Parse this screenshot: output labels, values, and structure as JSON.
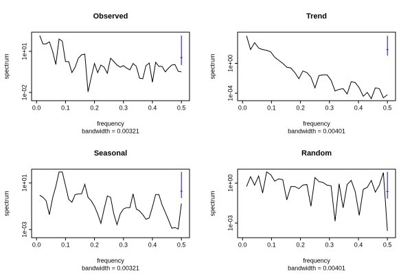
{
  "chart_data": [
    {
      "type": "line",
      "title": "Observed",
      "xlabel": "frequency",
      "subtitle": "bandwidth = 0.00321",
      "ylabel": "spectrum",
      "y_scale": "log",
      "color": "#000000",
      "x": [
        0.0111,
        0.0222,
        0.0333,
        0.0444,
        0.0556,
        0.0667,
        0.0778,
        0.0889,
        0.1,
        0.1111,
        0.1222,
        0.1333,
        0.1444,
        0.1556,
        0.1667,
        0.1778,
        0.1889,
        0.2,
        0.2111,
        0.2222,
        0.2333,
        0.2444,
        0.2556,
        0.2667,
        0.2778,
        0.2889,
        0.3,
        0.3111,
        0.3222,
        0.3333,
        0.3444,
        0.3556,
        0.3667,
        0.3778,
        0.3889,
        0.4,
        0.4111,
        0.4222,
        0.4333,
        0.4444,
        0.4556,
        0.4667,
        0.4778,
        0.4889,
        0.5
      ],
      "values": [
        141,
        35,
        35,
        50,
        10,
        1.1,
        79,
        56,
        1.8,
        1.8,
        0.28,
        0.7,
        3.2,
        5.6,
        6.3,
        0.011,
        0.13,
        1.3,
        0.28,
        1.0,
        0.7,
        0.25,
        3.2,
        1.8,
        1.0,
        0.7,
        0.9,
        0.6,
        0.45,
        1.3,
        0.8,
        0.11,
        0.1,
        0.9,
        1.4,
        0.056,
        1.6,
        0.8,
        0.8,
        0.32,
        0.6,
        1.0,
        1.1,
        0.35,
        0.32
      ],
      "ci": {
        "x": 0.5,
        "lower": 1.0,
        "center": 3.5,
        "upper": 141,
        "color": "#0000ff"
      },
      "xlim": [
        -0.017,
        0.528
      ],
      "xticks": [
        {
          "value": 0,
          "label": "0.0"
        },
        0.1,
        0.2,
        0.3,
        0.4,
        0.5
      ],
      "ylim": [
        0.0025,
        250
      ],
      "yticks": [
        {
          "value": 0.01,
          "label": "1e-02"
        },
        {
          "value": 10,
          "label": "1e+01"
        }
      ]
    },
    {
      "type": "line",
      "title": "Trend",
      "xlabel": "frequency",
      "subtitle": "bandwidth = 0.00401",
      "ylabel": "spectrum",
      "y_scale": "log",
      "color": "#000000",
      "x": [
        0.0139,
        0.0278,
        0.0417,
        0.0556,
        0.0694,
        0.0833,
        0.0972,
        0.1111,
        0.125,
        0.1389,
        0.1528,
        0.1667,
        0.1806,
        0.1944,
        0.2083,
        0.2222,
        0.2361,
        0.25,
        0.2639,
        0.2778,
        0.2917,
        0.3056,
        0.3194,
        0.3333,
        0.3472,
        0.3611,
        0.375,
        0.3889,
        0.4028,
        0.4167,
        0.4306,
        0.4444,
        0.4583,
        0.4722,
        0.4861,
        0.5
      ],
      "values": [
        4900,
        70,
        590,
        113,
        70,
        55,
        35,
        6.6,
        2.6,
        1.0,
        0.31,
        0.24,
        0.059,
        0.0089,
        0.094,
        0.059,
        0.014,
        0.00052,
        0.023,
        0.029,
        0.029,
        0.0055,
        0.0002,
        0.00033,
        0.00041,
        7.9e-05,
        0.0035,
        0.0027,
        0.00052,
        3.9e-05,
        0.00013,
        1.9e-05,
        0.00052,
        0.00041,
        2.4e-05,
        6.3e-05
      ],
      "ci": {
        "x": 0.5,
        "lower": 10.6,
        "center": 70,
        "upper": 4900,
        "color": "#0000ff"
      },
      "xlim": [
        -0.017,
        0.528
      ],
      "xticks": [
        {
          "value": 0,
          "label": "0.0"
        },
        0.1,
        0.2,
        0.3,
        0.4,
        0.5
      ],
      "ylim": [
        1e-05,
        15000
      ],
      "yticks": [
        {
          "value": 0.0001,
          "label": "1e-04"
        },
        {
          "value": 1,
          "label": "1e+00"
        }
      ]
    },
    {
      "type": "line",
      "title": "Seasonal",
      "xlabel": "frequency",
      "subtitle": "bandwidth = 0.00321",
      "ylabel": "spectrum",
      "y_scale": "log",
      "color": "#000000",
      "x": [
        0.0111,
        0.0222,
        0.0333,
        0.0444,
        0.0556,
        0.0667,
        0.0778,
        0.0889,
        0.1,
        0.1111,
        0.1222,
        0.1333,
        0.1444,
        0.1556,
        0.1667,
        0.1778,
        0.1889,
        0.2,
        0.2111,
        0.2222,
        0.2333,
        0.2444,
        0.2556,
        0.2667,
        0.2778,
        0.2889,
        0.3,
        0.3111,
        0.3222,
        0.3333,
        0.3444,
        0.3556,
        0.3667,
        0.3778,
        0.3889,
        0.4,
        0.4111,
        0.4222,
        0.4333,
        0.4444,
        0.4556,
        0.4667,
        0.4778,
        0.4889,
        0.5
      ],
      "values": [
        0.87,
        0.58,
        0.29,
        0.019,
        0.51,
        5.1,
        87,
        87,
        5.8,
        0.39,
        0.22,
        1.0,
        1.15,
        1.15,
        7.6,
        0.58,
        0.29,
        0.1,
        0.022,
        0.0034,
        0.058,
        0.76,
        0.58,
        0.022,
        0.0026,
        0.022,
        0.058,
        0.076,
        0.076,
        1.15,
        0.058,
        0.039,
        0.019,
        0.0076,
        0.01,
        0.087,
        1.0,
        1.0,
        0.13,
        0.03,
        0.0066,
        0.0013,
        0.0015,
        0.0011,
        0.17
      ],
      "ci": {
        "x": 0.5,
        "lower": 0.51,
        "center": 1.96,
        "upper": 87,
        "color": "#0000ff"
      },
      "xlim": [
        -0.017,
        0.528
      ],
      "xticks": [
        {
          "value": 0,
          "label": "0.0"
        },
        0.1,
        0.2,
        0.3,
        0.4,
        0.5
      ],
      "ylim": [
        0.0002,
        150
      ],
      "yticks": [
        {
          "value": 0.001,
          "label": "1e-03"
        },
        {
          "value": 10,
          "label": "1e+01"
        }
      ]
    },
    {
      "type": "line",
      "title": "Random",
      "xlabel": "frequency",
      "subtitle": "bandwidth = 0.00401",
      "ylabel": "spectrum",
      "y_scale": "log",
      "color": "#000000",
      "x": [
        0.0139,
        0.0278,
        0.0417,
        0.0556,
        0.0694,
        0.0833,
        0.0972,
        0.1111,
        0.125,
        0.1389,
        0.1528,
        0.1667,
        0.1806,
        0.1944,
        0.2083,
        0.2222,
        0.2361,
        0.25,
        0.2639,
        0.2778,
        0.2917,
        0.3056,
        0.3194,
        0.3333,
        0.3472,
        0.3611,
        0.375,
        0.3889,
        0.4028,
        0.4167,
        0.4306,
        0.4444,
        0.4583,
        0.4722,
        0.4861,
        0.5
      ],
      "values": [
        0.55,
        3.0,
        0.7,
        3.4,
        0.18,
        6.9,
        4.3,
        1.4,
        2.1,
        1.8,
        0.055,
        0.55,
        0.55,
        0.38,
        0.7,
        0.78,
        0.018,
        2.6,
        1.3,
        1.1,
        0.7,
        0.62,
        0.0014,
        0.89,
        0.014,
        0.78,
        1.6,
        0.23,
        0.0038,
        0.34,
        0.48,
        1.6,
        0.21,
        0.7,
        6.2,
        0.00026
      ],
      "ci": {
        "x": 0.5,
        "lower": 0.069,
        "center": 0.23,
        "upper": 6.9,
        "color": "#0000ff"
      },
      "xlim": [
        -0.017,
        0.528
      ],
      "xticks": [
        {
          "value": 0,
          "label": "0.0"
        },
        0.1,
        0.2,
        0.3,
        0.4,
        0.5
      ],
      "ylim": [
        8e-05,
        11
      ],
      "yticks": [
        {
          "value": 0.001,
          "label": "1e-03"
        },
        {
          "value": 1,
          "label": "1e+00"
        }
      ]
    }
  ]
}
